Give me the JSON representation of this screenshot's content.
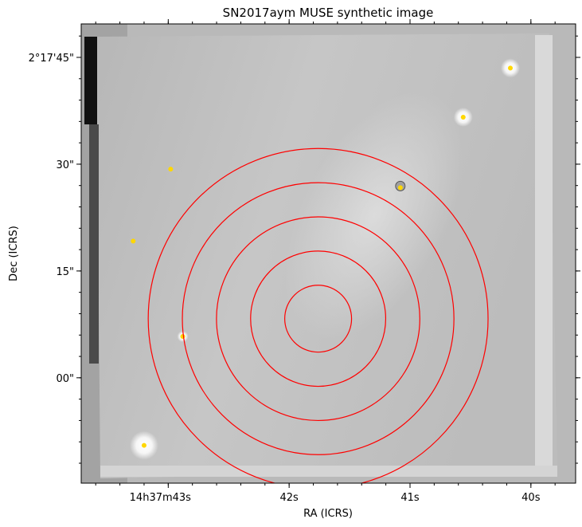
{
  "chart_data": {
    "type": "image",
    "title": "SN2017aym MUSE synthetic image",
    "xlabel": "RA (ICRS)",
    "ylabel": "Dec (ICRS)",
    "colormap": "grayscale",
    "grid": false,
    "x_ticks": [
      {
        "sec": 43,
        "label": "14h37m43s"
      },
      {
        "sec": 42,
        "label": "42s"
      },
      {
        "sec": 41,
        "label": "41s"
      },
      {
        "sec": 40,
        "label": "40s"
      }
    ],
    "y_ticks": [
      {
        "arcsec": 45,
        "label": "2°17'45\""
      },
      {
        "arcsec": 30,
        "label": "30\""
      },
      {
        "arcsec": 15,
        "label": "15\""
      },
      {
        "arcsec": 0,
        "label": "00\""
      }
    ],
    "ra_range_sec": [
      43.72,
      39.63
    ],
    "dec_range_arcsec": [
      -14.8,
      49.7
    ],
    "rings": {
      "center_ra_sec": 41.76,
      "center_dec_arcsec": 8.3,
      "radii_arcsec": [
        4.7,
        9.5,
        14.3,
        19.1,
        23.9
      ],
      "color": "#ff0000"
    },
    "markers": {
      "color": "#ffd700",
      "points": [
        {
          "ra_sec": 40.17,
          "dec_arcsec": 43.5,
          "glow": "bright"
        },
        {
          "ra_sec": 40.56,
          "dec_arcsec": 36.6,
          "glow": "bright"
        },
        {
          "ra_sec": 42.98,
          "dec_arcsec": 29.3,
          "glow": "none"
        },
        {
          "ra_sec": 41.08,
          "dec_arcsec": 26.7,
          "glow": "ring"
        },
        {
          "ra_sec": 43.29,
          "dec_arcsec": 19.2,
          "glow": "none"
        },
        {
          "ra_sec": 42.88,
          "dec_arcsec": 5.8,
          "glow": "small"
        },
        {
          "ra_sec": 43.2,
          "dec_arcsec": -9.5,
          "glow": "large"
        }
      ]
    }
  }
}
